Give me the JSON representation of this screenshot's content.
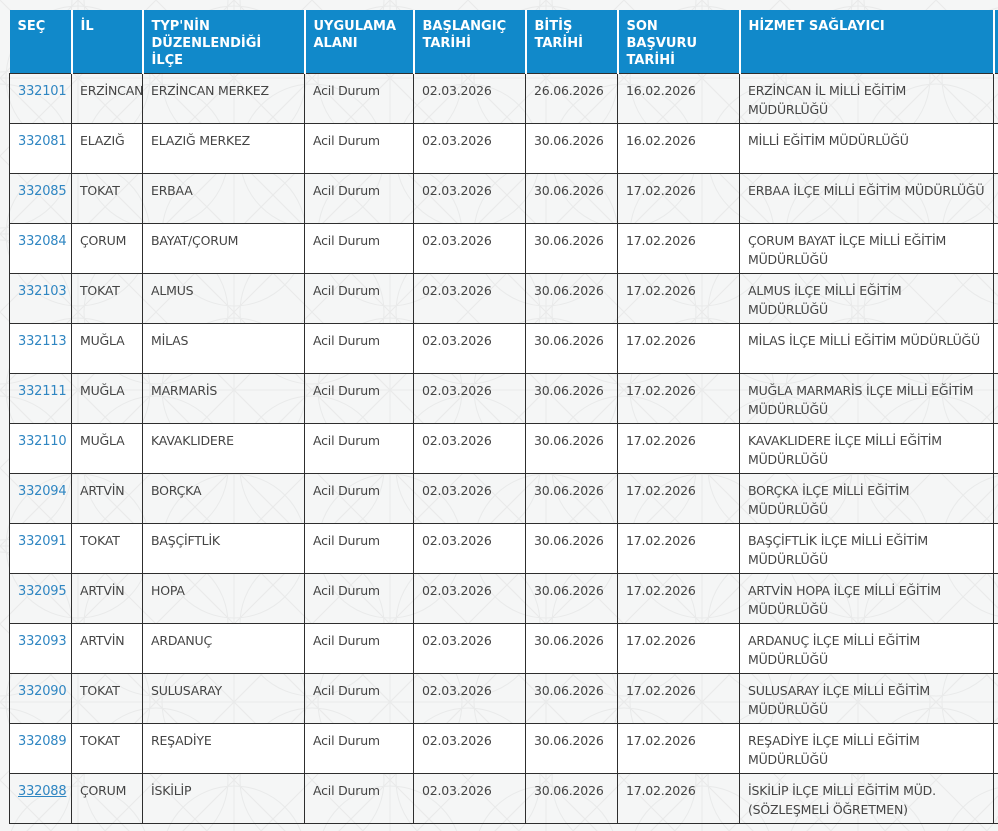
{
  "theme": {
    "header_bg": "#1189ca",
    "header_text": "#ffffff",
    "link_color": "#2f86c2",
    "body_text": "#444444",
    "border_color": "#2e2e2e",
    "row_alt_bg": "#ffffff",
    "page_bg": "#f5f6f6",
    "pattern_line": "#e9eaea"
  },
  "table": {
    "headers": [
      "SEÇ",
      "İL",
      "TYP'NİN DÜZENLENDİĞİ İLÇE",
      "UYGULAMA ALANI",
      "BAŞLANGIÇ TARİHİ",
      "BİTİŞ TARİHİ",
      "SON BAŞVURU TARİHİ",
      "HİZMET SAĞLAYICI"
    ],
    "rows": [
      {
        "id": "332101",
        "il": "ERZİNCAN",
        "ilce": "ERZİNCAN MERKEZ",
        "uygulama_alani": "Acil Durum",
        "baslangic": "02.03.2026",
        "bitis": "26.06.2026",
        "son_basvuru": "16.02.2026",
        "hizmet_saglayici": "ERZİNCAN İL MİLLİ EĞİTİM MÜDÜRLÜĞÜ",
        "underlined": false
      },
      {
        "id": "332081",
        "il": "ELAZIĞ",
        "ilce": "ELAZIĞ MERKEZ",
        "uygulama_alani": "Acil Durum",
        "baslangic": "02.03.2026",
        "bitis": "30.06.2026",
        "son_basvuru": "16.02.2026",
        "hizmet_saglayici": "MİLLİ EĞİTİM MÜDÜRLÜĞÜ",
        "underlined": false
      },
      {
        "id": "332085",
        "il": "TOKAT",
        "ilce": "ERBAA",
        "uygulama_alani": "Acil Durum",
        "baslangic": "02.03.2026",
        "bitis": "30.06.2026",
        "son_basvuru": "17.02.2026",
        "hizmet_saglayici": "ERBAA İLÇE MİLLİ EĞİTİM MÜDÜRLÜĞÜ",
        "underlined": false
      },
      {
        "id": "332084",
        "il": "ÇORUM",
        "ilce": "BAYAT/ÇORUM",
        "uygulama_alani": "Acil Durum",
        "baslangic": "02.03.2026",
        "bitis": "30.06.2026",
        "son_basvuru": "17.02.2026",
        "hizmet_saglayici": "ÇORUM BAYAT İLÇE MİLLİ EĞİTİM MÜDÜRLÜĞÜ",
        "underlined": false
      },
      {
        "id": "332103",
        "il": "TOKAT",
        "ilce": "ALMUS",
        "uygulama_alani": "Acil Durum",
        "baslangic": "02.03.2026",
        "bitis": "30.06.2026",
        "son_basvuru": "17.02.2026",
        "hizmet_saglayici": "ALMUS İLÇE MİLLİ EĞİTİM MÜDÜRLÜĞÜ",
        "underlined": false
      },
      {
        "id": "332113",
        "il": "MUĞLA",
        "ilce": "MİLAS",
        "uygulama_alani": "Acil Durum",
        "baslangic": "02.03.2026",
        "bitis": "30.06.2026",
        "son_basvuru": "17.02.2026",
        "hizmet_saglayici": "MİLAS İLÇE MİLLİ EĞİTİM MÜDÜRLÜĞÜ",
        "underlined": false
      },
      {
        "id": "332111",
        "il": "MUĞLA",
        "ilce": "MARMARİS",
        "uygulama_alani": "Acil Durum",
        "baslangic": "02.03.2026",
        "bitis": "30.06.2026",
        "son_basvuru": "17.02.2026",
        "hizmet_saglayici": "MUĞLA MARMARİS İLÇE MİLLİ EĞİTİM MÜDÜRLÜĞÜ",
        "underlined": false
      },
      {
        "id": "332110",
        "il": "MUĞLA",
        "ilce": "KAVAKLIDERE",
        "uygulama_alani": "Acil Durum",
        "baslangic": "02.03.2026",
        "bitis": "30.06.2026",
        "son_basvuru": "17.02.2026",
        "hizmet_saglayici": "KAVAKLIDERE İLÇE MİLLİ EĞİTİM MÜDÜRLÜĞÜ",
        "underlined": false
      },
      {
        "id": "332094",
        "il": "ARTVİN",
        "ilce": "BORÇKA",
        "uygulama_alani": "Acil Durum",
        "baslangic": "02.03.2026",
        "bitis": "30.06.2026",
        "son_basvuru": "17.02.2026",
        "hizmet_saglayici": "BORÇKA İLÇE MİLLİ EĞİTİM MÜDÜRLÜĞÜ",
        "underlined": false
      },
      {
        "id": "332091",
        "il": "TOKAT",
        "ilce": "BAŞÇİFTLİK",
        "uygulama_alani": "Acil Durum",
        "baslangic": "02.03.2026",
        "bitis": "30.06.2026",
        "son_basvuru": "17.02.2026",
        "hizmet_saglayici": "BAŞÇİFTLİK İLÇE MİLLİ EĞİTİM MÜDÜRLÜĞÜ",
        "underlined": false
      },
      {
        "id": "332095",
        "il": "ARTVİN",
        "ilce": "HOPA",
        "uygulama_alani": "Acil Durum",
        "baslangic": "02.03.2026",
        "bitis": "30.06.2026",
        "son_basvuru": "17.02.2026",
        "hizmet_saglayici": "ARTVİN HOPA İLÇE MİLLİ EĞİTİM MÜDÜRLÜĞÜ",
        "underlined": false
      },
      {
        "id": "332093",
        "il": "ARTVİN",
        "ilce": "ARDANUÇ",
        "uygulama_alani": "Acil Durum",
        "baslangic": "02.03.2026",
        "bitis": "30.06.2026",
        "son_basvuru": "17.02.2026",
        "hizmet_saglayici": "ARDANUÇ İLÇE MİLLİ EĞİTİM MÜDÜRLÜĞÜ",
        "underlined": false
      },
      {
        "id": "332090",
        "il": "TOKAT",
        "ilce": "SULUSARAY",
        "uygulama_alani": "Acil Durum",
        "baslangic": "02.03.2026",
        "bitis": "30.06.2026",
        "son_basvuru": "17.02.2026",
        "hizmet_saglayici": "SULUSARAY İLÇE MİLLİ EĞİTİM MÜDÜRLÜĞÜ",
        "underlined": false
      },
      {
        "id": "332089",
        "il": "TOKAT",
        "ilce": "REŞADİYE",
        "uygulama_alani": "Acil Durum",
        "baslangic": "02.03.2026",
        "bitis": "30.06.2026",
        "son_basvuru": "17.02.2026",
        "hizmet_saglayici": "REŞADİYE İLÇE MİLLİ EĞİTİM MÜDÜRLÜĞÜ",
        "underlined": false
      },
      {
        "id": "332088",
        "il": "ÇORUM",
        "ilce": "İSKİLİP",
        "uygulama_alani": "Acil Durum",
        "baslangic": "02.03.2026",
        "bitis": "30.06.2026",
        "son_basvuru": "17.02.2026",
        "hizmet_saglayici": "İSKİLİP İLÇE MİLLİ EĞİTİM MÜD. (SÖZLEŞMELİ ÖĞRETMEN)",
        "underlined": true
      }
    ]
  }
}
